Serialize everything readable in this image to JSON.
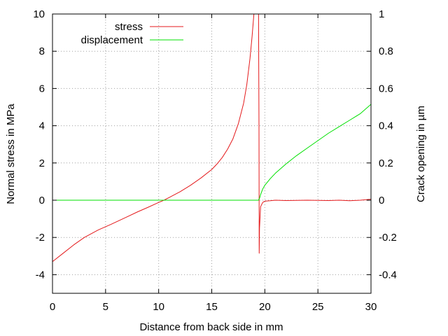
{
  "chart_data": {
    "type": "line",
    "title": "",
    "xlabel": "Distance from back side in mm",
    "ylabel": "Normal stress in MPa",
    "y2label": "Crack opening in µm",
    "xlim": [
      0,
      30
    ],
    "ylim": [
      -5,
      10
    ],
    "y2lim": [
      -0.5,
      1
    ],
    "x_ticks": [
      "0",
      "5",
      "10",
      "15",
      "20",
      "25",
      "30"
    ],
    "x_tick_values": [
      0,
      5,
      10,
      15,
      20,
      25,
      30
    ],
    "y_ticks": [
      "-4",
      "-2",
      "0",
      "2",
      "4",
      "6",
      "8",
      "10"
    ],
    "y_tick_values": [
      -4,
      -2,
      0,
      2,
      4,
      6,
      8,
      10
    ],
    "y2_ticks": [
      "-0.4",
      "-0.2",
      "0",
      "0.2",
      "0.4",
      "0.6",
      "0.8",
      "1"
    ],
    "y2_tick_values": [
      -0.4,
      -0.2,
      0,
      0.2,
      0.4,
      0.6,
      0.8,
      1
    ],
    "grid": true,
    "legend_position": "top-left",
    "series": [
      {
        "name": "stress",
        "axis": "left",
        "color": "#e41a1c",
        "x": [
          0,
          1,
          2,
          3,
          4.3,
          5.5,
          7,
          8,
          9,
          10,
          10.5,
          11,
          12,
          13,
          14,
          15,
          15.5,
          16,
          16.5,
          17,
          17.5,
          18,
          18.3,
          18.6,
          18.8,
          19,
          19.1,
          19.2,
          19.3,
          19.4,
          19.45,
          19.47,
          19.5,
          19.6,
          19.8,
          20,
          20.5,
          21,
          22,
          23,
          24,
          25,
          26,
          27,
          28,
          29,
          30
        ],
        "y": [
          -3.3,
          -2.85,
          -2.4,
          -2.0,
          -1.6,
          -1.3,
          -0.9,
          -0.63,
          -0.38,
          -0.12,
          0.0,
          0.15,
          0.45,
          0.8,
          1.2,
          1.65,
          1.95,
          2.3,
          2.75,
          3.3,
          4.1,
          5.2,
          6.2,
          7.6,
          8.8,
          10.2,
          11,
          11,
          11,
          11,
          4.0,
          -2.85,
          -1.5,
          -0.35,
          -0.12,
          -0.05,
          -0.03,
          0.0,
          -0.02,
          -0.01,
          0.0,
          -0.01,
          -0.02,
          0.0,
          -0.03,
          0.0,
          0.05
        ]
      },
      {
        "name": "displacement",
        "axis": "right",
        "color": "#00e000",
        "x": [
          0,
          5,
          10,
          15,
          19.4,
          19.5,
          19.6,
          19.8,
          20,
          20.5,
          21,
          22,
          23,
          24,
          25,
          26,
          27,
          28,
          29,
          30
        ],
        "y": [
          0,
          0,
          0,
          0,
          0,
          0.01,
          0.03,
          0.06,
          0.08,
          0.115,
          0.145,
          0.195,
          0.24,
          0.28,
          0.32,
          0.36,
          0.395,
          0.43,
          0.465,
          0.515
        ]
      }
    ]
  }
}
